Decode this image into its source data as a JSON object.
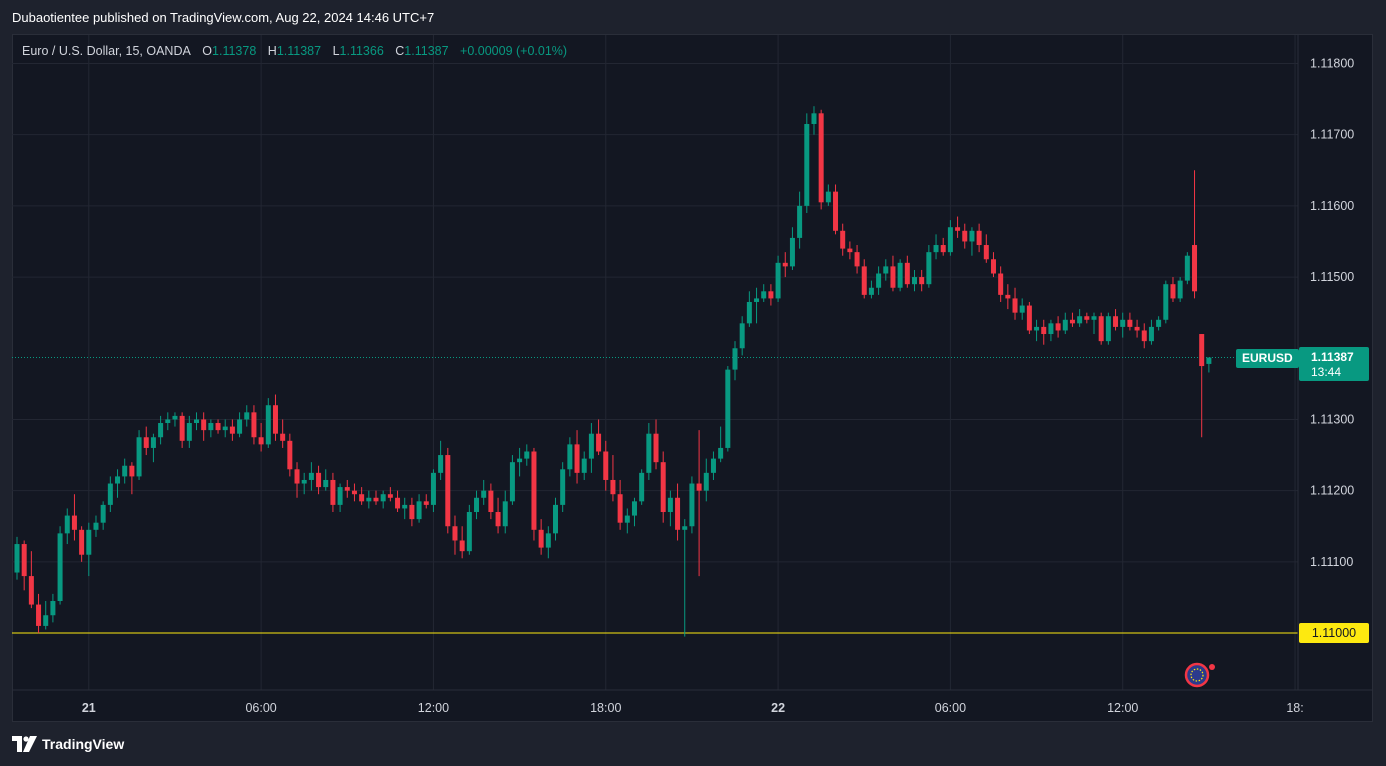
{
  "header": {
    "publish_text": "Dubaotientee published on TradingView.com, Aug 22, 2024 14:46 UTC+7"
  },
  "legend": {
    "symbol_text": "Euro / U.S. Dollar, 15, OANDA",
    "o_label": "O",
    "o_value": "1.11378",
    "h_label": "H",
    "h_value": "1.11387",
    "l_label": "L",
    "l_value": "1.11366",
    "c_label": "C",
    "c_value": "1.11387",
    "change": "+0.00009 (+0.01%)"
  },
  "price_tag": {
    "symbol": "EURUSD",
    "price": "1.11387",
    "countdown": "13:44"
  },
  "level_tag": {
    "price": "1.11000"
  },
  "footer": {
    "brand": "TradingView"
  },
  "colors": {
    "up": "#089981",
    "down": "#f23645",
    "level": "#fde910",
    "background": "#131722"
  },
  "icons": {
    "symbol_flag": "eu-us-flag-icon",
    "brand_logo": "tradingview-logo-icon"
  },
  "chart_data": {
    "type": "candlestick",
    "symbol": "EURUSD",
    "interval": "15",
    "y_range": [
      1.1092,
      1.1184
    ],
    "y_ticks": [
      "1.11100",
      "1.11200",
      "1.11300",
      "1.11500",
      "1.11600",
      "1.11700",
      "1.11800"
    ],
    "x_ticks": [
      {
        "label": "21",
        "bar": 10
      },
      {
        "label": "06:00",
        "bar": 34
      },
      {
        "label": "12:00",
        "bar": 58
      },
      {
        "label": "18:00",
        "bar": 82
      },
      {
        "label": "22",
        "bar": 106
      },
      {
        "label": "06:00",
        "bar": 130
      },
      {
        "label": "12:00",
        "bar": 154
      },
      {
        "label": "18:",
        "bar": 178
      }
    ],
    "horizontal_levels": [
      1.11
    ],
    "last_price": 1.11387,
    "ohlc": [
      [
        1.11085,
        1.11135,
        1.11075,
        1.11125
      ],
      [
        1.11125,
        1.1113,
        1.1106,
        1.1108
      ],
      [
        1.1108,
        1.11115,
        1.11035,
        1.1104
      ],
      [
        1.1104,
        1.11055,
        1.11,
        1.1101
      ],
      [
        1.1101,
        1.11045,
        1.11005,
        1.11025
      ],
      [
        1.11025,
        1.11055,
        1.11015,
        1.11045
      ],
      [
        1.11045,
        1.1115,
        1.1104,
        1.1114
      ],
      [
        1.1114,
        1.11175,
        1.11125,
        1.11165
      ],
      [
        1.11165,
        1.11195,
        1.1113,
        1.11145
      ],
      [
        1.11145,
        1.1115,
        1.111,
        1.1111
      ],
      [
        1.1111,
        1.11155,
        1.1108,
        1.11145
      ],
      [
        1.11145,
        1.11165,
        1.11135,
        1.11155
      ],
      [
        1.11155,
        1.11185,
        1.11145,
        1.1118
      ],
      [
        1.1118,
        1.1122,
        1.1117,
        1.1121
      ],
      [
        1.1121,
        1.1123,
        1.1119,
        1.1122
      ],
      [
        1.1122,
        1.11245,
        1.1121,
        1.11235
      ],
      [
        1.11235,
        1.1124,
        1.11195,
        1.1122
      ],
      [
        1.1122,
        1.11285,
        1.11215,
        1.11275
      ],
      [
        1.11275,
        1.1129,
        1.1125,
        1.1126
      ],
      [
        1.1126,
        1.1128,
        1.1124,
        1.11275
      ],
      [
        1.11275,
        1.11305,
        1.11265,
        1.11295
      ],
      [
        1.11295,
        1.1131,
        1.11285,
        1.113
      ],
      [
        1.113,
        1.1131,
        1.1129,
        1.11305
      ],
      [
        1.11305,
        1.1131,
        1.1126,
        1.1127
      ],
      [
        1.1127,
        1.11305,
        1.1126,
        1.11295
      ],
      [
        1.11295,
        1.1131,
        1.11285,
        1.113
      ],
      [
        1.113,
        1.1131,
        1.1127,
        1.11285
      ],
      [
        1.11285,
        1.113,
        1.11275,
        1.11295
      ],
      [
        1.11295,
        1.113,
        1.1128,
        1.11285
      ],
      [
        1.11285,
        1.113,
        1.11275,
        1.1129
      ],
      [
        1.1129,
        1.113,
        1.1127,
        1.1128
      ],
      [
        1.1128,
        1.1131,
        1.11275,
        1.113
      ],
      [
        1.113,
        1.1132,
        1.1129,
        1.1131
      ],
      [
        1.1131,
        1.1132,
        1.11265,
        1.11275
      ],
      [
        1.11275,
        1.11295,
        1.11255,
        1.11265
      ],
      [
        1.11265,
        1.1133,
        1.1126,
        1.1132
      ],
      [
        1.1132,
        1.11335,
        1.1127,
        1.1128
      ],
      [
        1.1128,
        1.113,
        1.1126,
        1.1127
      ],
      [
        1.1127,
        1.1128,
        1.1122,
        1.1123
      ],
      [
        1.1123,
        1.1124,
        1.1119,
        1.1121
      ],
      [
        1.1121,
        1.11225,
        1.11195,
        1.11215
      ],
      [
        1.11215,
        1.1124,
        1.112,
        1.11225
      ],
      [
        1.11225,
        1.11235,
        1.11195,
        1.11205
      ],
      [
        1.11205,
        1.1123,
        1.112,
        1.11215
      ],
      [
        1.11215,
        1.11225,
        1.1117,
        1.1118
      ],
      [
        1.1118,
        1.1121,
        1.1117,
        1.11205
      ],
      [
        1.11205,
        1.11215,
        1.1119,
        1.112
      ],
      [
        1.112,
        1.1121,
        1.11185,
        1.11195
      ],
      [
        1.11195,
        1.11205,
        1.1118,
        1.11185
      ],
      [
        1.11185,
        1.112,
        1.11175,
        1.1119
      ],
      [
        1.1119,
        1.112,
        1.1118,
        1.11185
      ],
      [
        1.11185,
        1.112,
        1.11175,
        1.11195
      ],
      [
        1.11195,
        1.11205,
        1.11185,
        1.1119
      ],
      [
        1.1119,
        1.112,
        1.1117,
        1.11175
      ],
      [
        1.11175,
        1.1119,
        1.1116,
        1.1118
      ],
      [
        1.1118,
        1.1119,
        1.1115,
        1.1116
      ],
      [
        1.1116,
        1.11195,
        1.11155,
        1.11185
      ],
      [
        1.11185,
        1.11195,
        1.11175,
        1.1118
      ],
      [
        1.1118,
        1.1123,
        1.1117,
        1.11225
      ],
      [
        1.11225,
        1.1127,
        1.11215,
        1.1125
      ],
      [
        1.1125,
        1.1126,
        1.1114,
        1.1115
      ],
      [
        1.1115,
        1.11165,
        1.1111,
        1.1113
      ],
      [
        1.1113,
        1.1115,
        1.11105,
        1.11115
      ],
      [
        1.11115,
        1.1118,
        1.1111,
        1.1117
      ],
      [
        1.1117,
        1.112,
        1.1116,
        1.1119
      ],
      [
        1.1119,
        1.11215,
        1.1118,
        1.112
      ],
      [
        1.112,
        1.1121,
        1.1116,
        1.1117
      ],
      [
        1.1117,
        1.1119,
        1.1114,
        1.1115
      ],
      [
        1.1115,
        1.112,
        1.1114,
        1.11185
      ],
      [
        1.11185,
        1.1125,
        1.1118,
        1.1124
      ],
      [
        1.1124,
        1.1126,
        1.1122,
        1.11245
      ],
      [
        1.11245,
        1.11265,
        1.11235,
        1.11255
      ],
      [
        1.11255,
        1.1126,
        1.1113,
        1.11145
      ],
      [
        1.11145,
        1.1116,
        1.1111,
        1.1112
      ],
      [
        1.1112,
        1.1115,
        1.11105,
        1.1114
      ],
      [
        1.1114,
        1.1119,
        1.1113,
        1.1118
      ],
      [
        1.1118,
        1.1124,
        1.1117,
        1.1123
      ],
      [
        1.1123,
        1.11275,
        1.1122,
        1.11265
      ],
      [
        1.11265,
        1.11285,
        1.1121,
        1.11225
      ],
      [
        1.11225,
        1.11255,
        1.11215,
        1.11245
      ],
      [
        1.11245,
        1.11295,
        1.11225,
        1.1128
      ],
      [
        1.1128,
        1.113,
        1.1125,
        1.11255
      ],
      [
        1.11255,
        1.1127,
        1.112,
        1.11215
      ],
      [
        1.11215,
        1.1125,
        1.11185,
        1.11195
      ],
      [
        1.11195,
        1.11215,
        1.11145,
        1.11155
      ],
      [
        1.11155,
        1.11175,
        1.1114,
        1.11165
      ],
      [
        1.11165,
        1.1119,
        1.1115,
        1.11185
      ],
      [
        1.11185,
        1.1123,
        1.1118,
        1.11225
      ],
      [
        1.11225,
        1.11295,
        1.11215,
        1.1128
      ],
      [
        1.1128,
        1.113,
        1.1123,
        1.1124
      ],
      [
        1.1124,
        1.11255,
        1.11155,
        1.1117
      ],
      [
        1.1117,
        1.112,
        1.1115,
        1.1119
      ],
      [
        1.1119,
        1.1121,
        1.1113,
        1.11145
      ],
      [
        1.11145,
        1.1116,
        1.10995,
        1.1115
      ],
      [
        1.1115,
        1.1122,
        1.1114,
        1.1121
      ],
      [
        1.1121,
        1.11285,
        1.1108,
        1.112
      ],
      [
        1.112,
        1.11245,
        1.11185,
        1.11225
      ],
      [
        1.11225,
        1.11255,
        1.11215,
        1.11245
      ],
      [
        1.11245,
        1.1129,
        1.1124,
        1.1126
      ],
      [
        1.1126,
        1.11375,
        1.11255,
        1.1137
      ],
      [
        1.1137,
        1.1141,
        1.11355,
        1.114
      ],
      [
        1.114,
        1.11445,
        1.1139,
        1.11435
      ],
      [
        1.11435,
        1.1148,
        1.1143,
        1.11465
      ],
      [
        1.11465,
        1.11485,
        1.11435,
        1.1147
      ],
      [
        1.1147,
        1.1149,
        1.11465,
        1.1148
      ],
      [
        1.1148,
        1.1149,
        1.1146,
        1.1147
      ],
      [
        1.1147,
        1.1153,
        1.11465,
        1.1152
      ],
      [
        1.1152,
        1.11535,
        1.115,
        1.11515
      ],
      [
        1.11515,
        1.1157,
        1.1151,
        1.11555
      ],
      [
        1.11555,
        1.1162,
        1.1154,
        1.116
      ],
      [
        1.116,
        1.1173,
        1.1159,
        1.11715
      ],
      [
        1.11715,
        1.1174,
        1.117,
        1.1173
      ],
      [
        1.1173,
        1.11735,
        1.11595,
        1.11605
      ],
      [
        1.11605,
        1.1163,
        1.116,
        1.1162
      ],
      [
        1.1162,
        1.1163,
        1.1156,
        1.11565
      ],
      [
        1.11565,
        1.11575,
        1.1153,
        1.1154
      ],
      [
        1.1154,
        1.1155,
        1.11525,
        1.11535
      ],
      [
        1.11535,
        1.11545,
        1.11505,
        1.11515
      ],
      [
        1.11515,
        1.11525,
        1.1147,
        1.11475
      ],
      [
        1.11475,
        1.11495,
        1.1147,
        1.11485
      ],
      [
        1.11485,
        1.11515,
        1.11475,
        1.11505
      ],
      [
        1.11505,
        1.11525,
        1.11495,
        1.11515
      ],
      [
        1.11515,
        1.1153,
        1.1148,
        1.11485
      ],
      [
        1.11485,
        1.11525,
        1.1148,
        1.1152
      ],
      [
        1.1152,
        1.1153,
        1.11485,
        1.1149
      ],
      [
        1.1149,
        1.1151,
        1.1148,
        1.115
      ],
      [
        1.115,
        1.1151,
        1.1148,
        1.1149
      ],
      [
        1.1149,
        1.11545,
        1.11485,
        1.11535
      ],
      [
        1.11535,
        1.1156,
        1.11525,
        1.11545
      ],
      [
        1.11545,
        1.11555,
        1.1153,
        1.11535
      ],
      [
        1.11535,
        1.1158,
        1.1153,
        1.1157
      ],
      [
        1.1157,
        1.11585,
        1.11555,
        1.11565
      ],
      [
        1.11565,
        1.11575,
        1.1154,
        1.1155
      ],
      [
        1.1155,
        1.1157,
        1.1153,
        1.11565
      ],
      [
        1.11565,
        1.11575,
        1.11535,
        1.11545
      ],
      [
        1.11545,
        1.1156,
        1.1152,
        1.11525
      ],
      [
        1.11525,
        1.11535,
        1.115,
        1.11505
      ],
      [
        1.11505,
        1.11515,
        1.11465,
        1.11475
      ],
      [
        1.11475,
        1.1149,
        1.11455,
        1.1147
      ],
      [
        1.1147,
        1.11485,
        1.1144,
        1.1145
      ],
      [
        1.1145,
        1.1147,
        1.1144,
        1.1146
      ],
      [
        1.1146,
        1.11465,
        1.1142,
        1.11425
      ],
      [
        1.11425,
        1.1144,
        1.1141,
        1.1143
      ],
      [
        1.1143,
        1.1144,
        1.11405,
        1.1142
      ],
      [
        1.1142,
        1.1144,
        1.1141,
        1.11435
      ],
      [
        1.11435,
        1.11445,
        1.11415,
        1.11425
      ],
      [
        1.11425,
        1.1145,
        1.1142,
        1.1144
      ],
      [
        1.1144,
        1.1145,
        1.1143,
        1.11435
      ],
      [
        1.11435,
        1.11455,
        1.1143,
        1.11445
      ],
      [
        1.11445,
        1.1145,
        1.11435,
        1.1144
      ],
      [
        1.1144,
        1.1145,
        1.1142,
        1.11445
      ],
      [
        1.11445,
        1.1145,
        1.11405,
        1.1141
      ],
      [
        1.1141,
        1.1145,
        1.11405,
        1.11445
      ],
      [
        1.11445,
        1.11455,
        1.11425,
        1.1143
      ],
      [
        1.1143,
        1.1145,
        1.11415,
        1.1144
      ],
      [
        1.1144,
        1.1145,
        1.11425,
        1.1143
      ],
      [
        1.1143,
        1.1144,
        1.11415,
        1.11425
      ],
      [
        1.11425,
        1.11435,
        1.114,
        1.1141
      ],
      [
        1.1141,
        1.1144,
        1.11405,
        1.1143
      ],
      [
        1.1143,
        1.11445,
        1.11425,
        1.1144
      ],
      [
        1.1144,
        1.11495,
        1.11435,
        1.1149
      ],
      [
        1.1149,
        1.115,
        1.11465,
        1.1147
      ],
      [
        1.1147,
        1.115,
        1.11465,
        1.11495
      ],
      [
        1.11495,
        1.11535,
        1.1149,
        1.1153
      ],
      [
        1.11545,
        1.1165,
        1.1147,
        1.1148
      ],
      [
        1.1142,
        1.1142,
        1.11275,
        1.11375
      ],
      [
        1.11378,
        1.11387,
        1.11366,
        1.11387
      ]
    ]
  }
}
